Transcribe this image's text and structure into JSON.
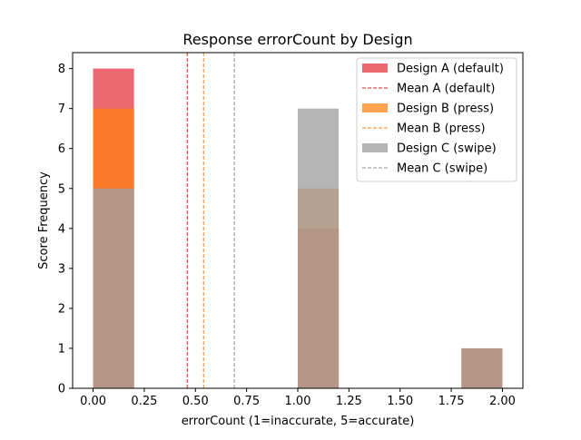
{
  "chart_data": {
    "type": "bar",
    "title": "Response errorCount by Design",
    "xlabel": "errorCount (1=inaccurate, 5=accurate)",
    "ylabel": "Score Frequency",
    "xlim": [
      -0.1,
      2.1
    ],
    "ylim": [
      0,
      8.4
    ],
    "xticks": [
      "0.00",
      "0.25",
      "0.50",
      "0.75",
      "1.00",
      "1.25",
      "1.50",
      "1.75",
      "2.00"
    ],
    "yticks": [
      "0",
      "1",
      "2",
      "3",
      "4",
      "5",
      "6",
      "7",
      "8"
    ],
    "bin_edges": [
      0.0,
      0.2,
      0.4,
      0.6,
      0.8,
      1.0,
      1.2,
      1.4,
      1.6,
      1.8,
      2.0
    ],
    "grid": false,
    "legend_position": "top-right",
    "series": [
      {
        "name": "Design A (default)",
        "kind": "histogram",
        "color": "#e8585f",
        "opacity": 0.9,
        "counts": [
          8,
          0,
          0,
          0,
          0,
          4,
          0,
          0,
          0,
          1
        ]
      },
      {
        "name": "Mean A (default)",
        "kind": "mean-line",
        "color": "#e02020",
        "value": 0.46
      },
      {
        "name": "Design B (press)",
        "kind": "histogram",
        "color": "#ff7f0e",
        "opacity": 0.72,
        "counts": [
          7,
          0,
          0,
          0,
          0,
          5,
          0,
          0,
          0,
          1
        ]
      },
      {
        "name": "Mean B (press)",
        "kind": "mean-line",
        "color": "#ff7f0e",
        "value": 0.54
      },
      {
        "name": "Design C (swipe)",
        "kind": "histogram",
        "color": "#a0a0a0",
        "opacity": 0.78,
        "counts": [
          5,
          0,
          0,
          0,
          0,
          7,
          0,
          0,
          0,
          1
        ]
      },
      {
        "name": "Mean C (swipe)",
        "kind": "mean-line",
        "color": "#909090",
        "value": 0.69
      }
    ]
  }
}
